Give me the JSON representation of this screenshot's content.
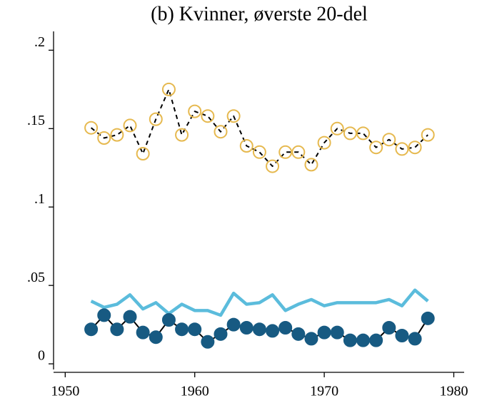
{
  "chart_data": {
    "type": "line",
    "title": "(b) Kvinner, øverste 20-del",
    "x": [
      1952,
      1953,
      1954,
      1955,
      1956,
      1957,
      1958,
      1959,
      1960,
      1961,
      1962,
      1963,
      1964,
      1965,
      1966,
      1967,
      1968,
      1969,
      1970,
      1971,
      1972,
      1973,
      1974,
      1975,
      1976,
      1977,
      1978
    ],
    "series": [
      {
        "color": "#e6b94f",
        "marker": "hollow-circle",
        "line_color": "#000000",
        "line_style": "dashed",
        "values": [
          0.1505,
          0.144,
          0.146,
          0.152,
          0.134,
          0.156,
          0.175,
          0.146,
          0.161,
          0.158,
          0.148,
          0.158,
          0.139,
          0.135,
          0.126,
          0.135,
          0.135,
          0.127,
          0.141,
          0.15,
          0.147,
          0.147,
          0.138,
          0.143,
          0.137,
          0.138,
          0.146
        ]
      },
      {
        "color": "#5bbcdc",
        "marker": "none",
        "line_color": "#5bbcdc",
        "line_style": "solid",
        "values": [
          0.04,
          0.036,
          0.038,
          0.044,
          0.035,
          0.039,
          0.032,
          0.038,
          0.034,
          0.034,
          0.031,
          0.045,
          0.038,
          0.039,
          0.044,
          0.034,
          0.038,
          0.041,
          0.037,
          0.039,
          0.039,
          0.039,
          0.039,
          0.041,
          0.037,
          0.047,
          0.04
        ]
      },
      {
        "color": "#175a82",
        "marker": "filled-circle",
        "line_color": "#000000",
        "line_style": "solid",
        "values": [
          0.022,
          0.031,
          0.022,
          0.03,
          0.02,
          0.017,
          0.028,
          0.022,
          0.022,
          0.014,
          0.019,
          0.025,
          0.023,
          0.022,
          0.021,
          0.023,
          0.019,
          0.016,
          0.02,
          0.02,
          0.015,
          0.015,
          0.015,
          0.023,
          0.018,
          0.016,
          0.029
        ]
      }
    ],
    "xlim": [
      1949.1,
      1980.8
    ],
    "xticks": [
      1950,
      1960,
      1970,
      1980
    ],
    "ylim": [
      -0.0036,
      0.212
    ],
    "yticks": [
      0,
      {
        "value": 0.05,
        "label": ".05"
      },
      {
        "value": 0.1,
        "label": ".1"
      },
      {
        "value": 0.15,
        "label": ".15"
      },
      {
        "value": 0.2,
        "label": ".2"
      }
    ],
    "grid": false
  }
}
